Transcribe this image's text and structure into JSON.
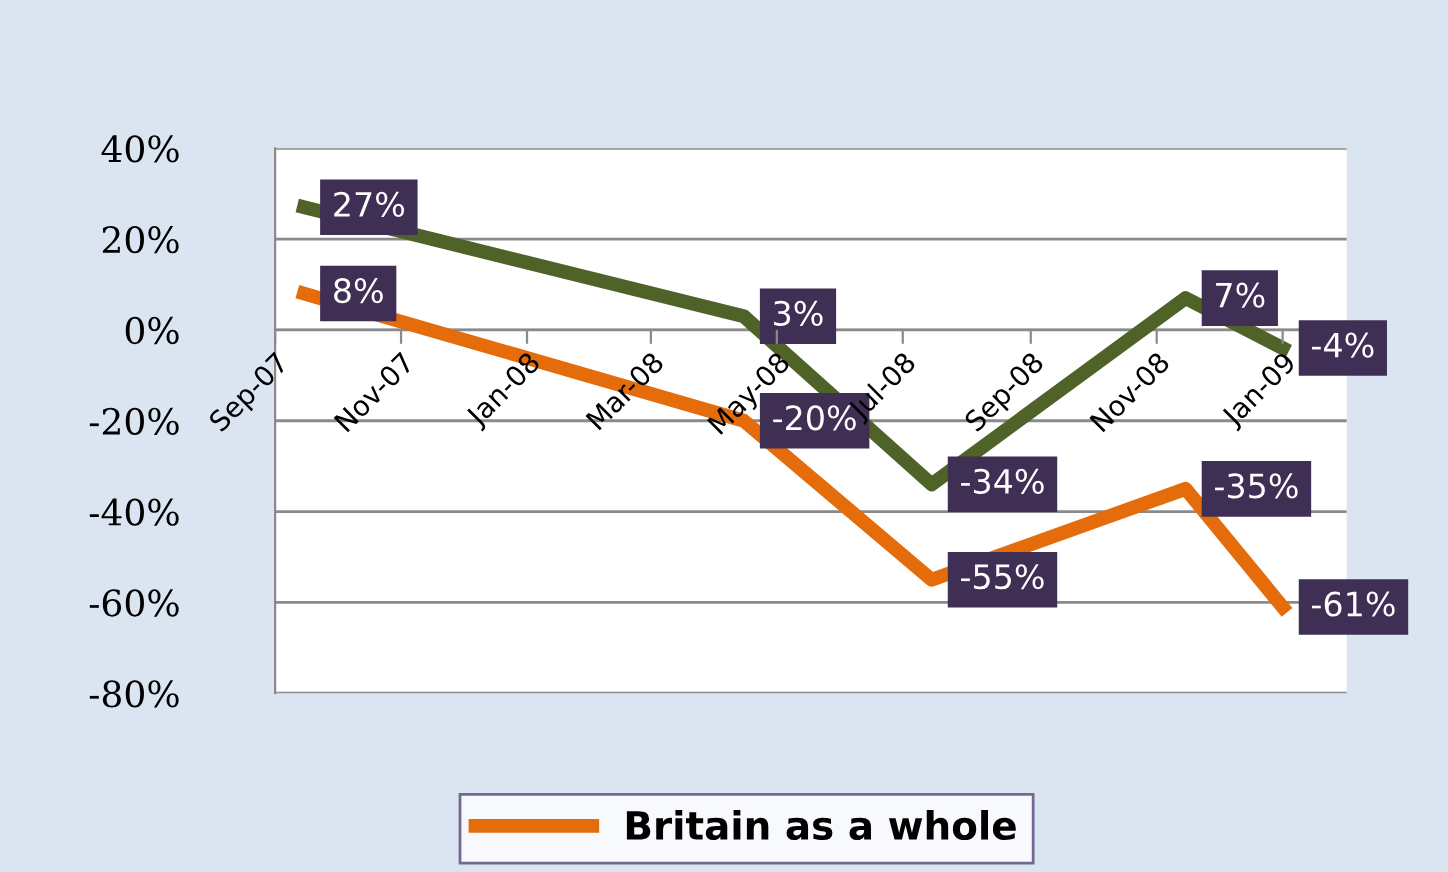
{
  "chart_data": {
    "type": "line",
    "x": [
      "2007-09-15",
      "2008-04-15",
      "2008-07-15",
      "2008-11-15",
      "2009-01-01"
    ],
    "xlim": [
      "2007-09-01",
      "2009-02-01"
    ],
    "xticks": [
      {
        "value": "2007-09-01",
        "label": "Sep-07"
      },
      {
        "value": "2007-11-01",
        "label": "Nov-07"
      },
      {
        "value": "2008-01-01",
        "label": "Jan-08"
      },
      {
        "value": "2008-03-01",
        "label": "Mar-08"
      },
      {
        "value": "2008-05-01",
        "label": "May-08"
      },
      {
        "value": "2008-07-01",
        "label": "Jul-08"
      },
      {
        "value": "2008-09-01",
        "label": "Sep-08"
      },
      {
        "value": "2008-11-01",
        "label": "Nov-08"
      },
      {
        "value": "2009-01-01",
        "label": "Jan-09"
      }
    ],
    "ylim": [
      -80,
      40
    ],
    "yticks": [
      {
        "value": -80,
        "label": "-80%"
      },
      {
        "value": -60,
        "label": "-60%"
      },
      {
        "value": -40,
        "label": "-40%"
      },
      {
        "value": -20,
        "label": "-20%"
      },
      {
        "value": 0,
        "label": "0%"
      },
      {
        "value": 20,
        "label": "20%"
      },
      {
        "value": 40,
        "label": "40%"
      }
    ],
    "grid": "y",
    "legend": "bottom",
    "marker": "none",
    "line_style": "solid",
    "series": [
      {
        "color": "#4f6228",
        "values": [
          27,
          3,
          -34,
          7,
          -4
        ],
        "value_labels": [
          "27%",
          "3%",
          "-34%",
          "7%",
          "-4%"
        ]
      },
      {
        "name": "Britain as a whole",
        "color": "#e46c0a",
        "values": [
          8,
          -20,
          -55,
          -35,
          -61
        ],
        "value_labels": [
          "8%",
          "-20%",
          "-55%",
          "-35%",
          "-61%"
        ]
      }
    ]
  }
}
